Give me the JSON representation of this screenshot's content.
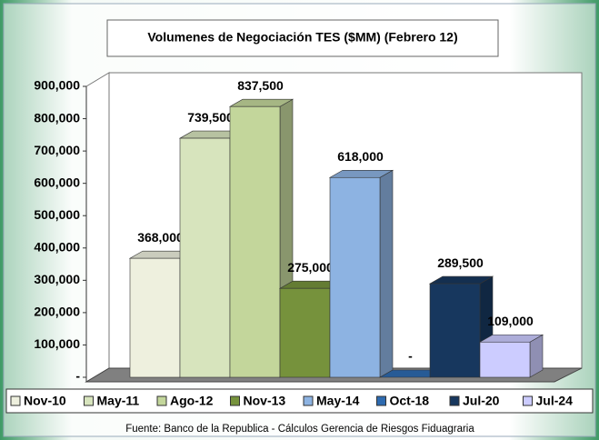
{
  "chart_data": {
    "type": "bar3d",
    "title": "Volumenes de Negociación TES ($MM) (Febrero 12)",
    "categories": [
      "Nov-10",
      "May-11",
      "Ago-12",
      "Nov-13",
      "May-14",
      "Oct-18",
      "Jul-20",
      "Jul-24"
    ],
    "values": [
      368000,
      739500,
      837500,
      275000,
      618000,
      0,
      289500,
      109000
    ],
    "value_labels": [
      "368,000",
      "739,500",
      "837,500",
      "275,000",
      "618,000",
      "-",
      "289,500",
      "109,000"
    ],
    "colors": [
      "#eef0de",
      "#d7e4bd",
      "#c3d69b",
      "#76923c",
      "#8db3e2",
      "#2e6bb0",
      "#17375e",
      "#ccccff"
    ],
    "ylim": [
      0,
      900000
    ],
    "yticks": [
      {
        "value": 0,
        "label": "-"
      },
      {
        "value": 100000,
        "label": "100,000"
      },
      {
        "value": 200000,
        "label": "200,000"
      },
      {
        "value": 300000,
        "label": "300,000"
      },
      {
        "value": 400000,
        "label": "400,000"
      },
      {
        "value": 500000,
        "label": "500,000"
      },
      {
        "value": 600000,
        "label": "600,000"
      },
      {
        "value": 700000,
        "label": "700,000"
      },
      {
        "value": 800000,
        "label": "800,000"
      },
      {
        "value": 900000,
        "label": "900,000"
      }
    ],
    "legend": "bottom",
    "source": "Fuente: Banco de la Republica - Cálculos Gerencia de Riesgos Fiduagraria"
  }
}
